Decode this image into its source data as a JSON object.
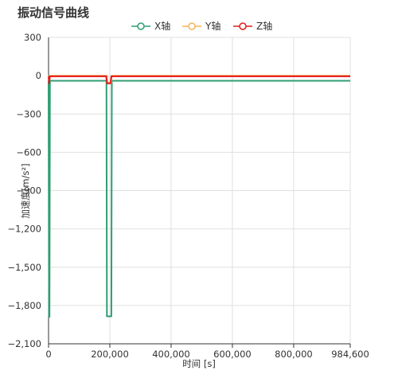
{
  "chart_data": {
    "type": "line",
    "title": "振动信号曲线",
    "xlabel": "时间 [s]",
    "ylabel": "加速度[m/s²]",
    "xlim": [
      0,
      984600
    ],
    "ylim": [
      -2100,
      300
    ],
    "x_ticks": [
      0,
      200000,
      400000,
      600000,
      800000,
      984600
    ],
    "x_tick_labels": [
      "0",
      "200,000",
      "400,000",
      "600,000",
      "800,000",
      "984,600"
    ],
    "y_ticks": [
      300,
      0,
      -300,
      -600,
      -900,
      -1200,
      -1500,
      -1800,
      -2100
    ],
    "y_tick_labels": [
      "300",
      "0",
      "−300",
      "−600",
      "−900",
      "−1,200",
      "−1,500",
      "−1,800",
      "−2,100"
    ],
    "grid": true,
    "legend_position": "top-center",
    "series": [
      {
        "name": "X轴",
        "color": "#2f9e73",
        "points": [
          [
            0,
            -40
          ],
          [
            1500,
            -1890
          ],
          [
            3000,
            -1890
          ],
          [
            4500,
            -40
          ],
          [
            189000,
            -40
          ],
          [
            190500,
            -1885
          ],
          [
            205000,
            -1885
          ],
          [
            206500,
            -40
          ],
          [
            984600,
            -40
          ]
        ]
      },
      {
        "name": "Y轴",
        "color": "#f5b45c",
        "points": [
          [
            0,
            0
          ],
          [
            3000,
            -30
          ],
          [
            5000,
            0
          ],
          [
            190000,
            0
          ],
          [
            192000,
            -55
          ],
          [
            204000,
            -55
          ],
          [
            206000,
            0
          ],
          [
            984600,
            0
          ]
        ]
      },
      {
        "name": "Z轴",
        "color": "#e41a1c",
        "points": [
          [
            0,
            -5
          ],
          [
            2000,
            -60
          ],
          [
            4000,
            -5
          ],
          [
            188000,
            -5
          ],
          [
            191000,
            -60
          ],
          [
            202000,
            -60
          ],
          [
            205000,
            -5
          ],
          [
            984600,
            -5
          ]
        ]
      }
    ]
  }
}
